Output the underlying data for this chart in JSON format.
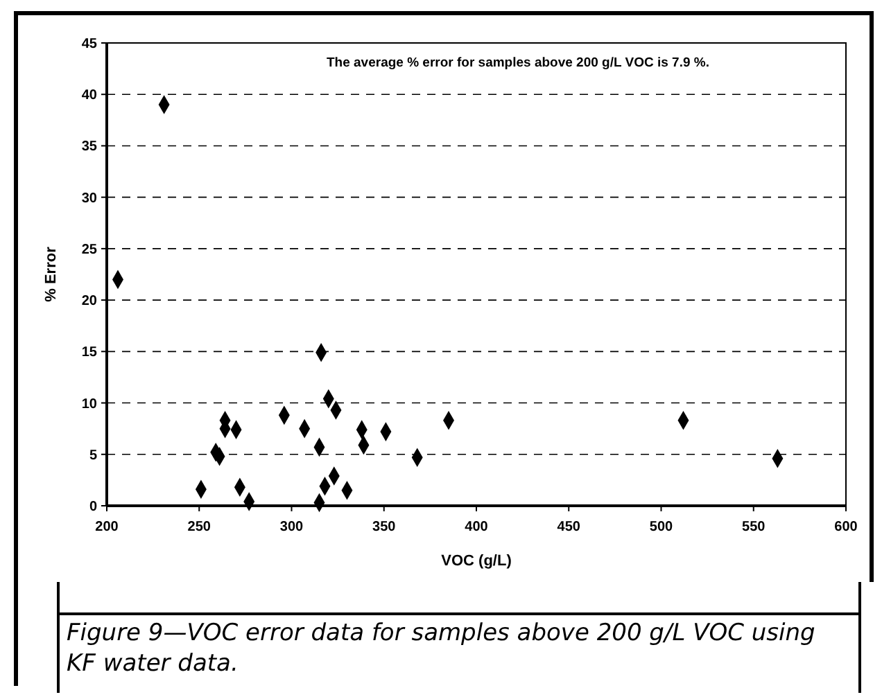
{
  "chart_data": {
    "type": "scatter",
    "xlabel": "VOC (g/L)",
    "ylabel": "% Error",
    "annotations": [
      "The average % error for samples above 200 g/L VOC is 7.9 %.",
      "Figure 9—VOC error data for samples above 200 g/L VOC using KF water data."
    ],
    "x": [
      206,
      231,
      251,
      259,
      261,
      264,
      264,
      270,
      272,
      277,
      296,
      307,
      315,
      316,
      315,
      318,
      320,
      323,
      324,
      330,
      338,
      339,
      351,
      368,
      385,
      512,
      563
    ],
    "values": [
      22,
      39,
      1.6,
      5.2,
      4.8,
      8.3,
      7.5,
      7.4,
      1.8,
      0.4,
      8.8,
      7.5,
      5.7,
      14.9,
      0.3,
      1.9,
      10.4,
      2.9,
      9.3,
      1.5,
      7.4,
      5.9,
      7.2,
      4.7,
      8.3,
      8.3,
      4.6
    ],
    "color": "#000000",
    "marker": "diamond",
    "grid": "y",
    "xlim": [
      200,
      600
    ],
    "xticks": [
      200,
      250,
      300,
      350,
      400,
      450,
      500,
      550,
      600
    ],
    "ylim": [
      0,
      45
    ],
    "yticks": [
      0,
      5,
      10,
      15,
      20,
      25,
      30,
      35,
      40,
      45
    ]
  }
}
